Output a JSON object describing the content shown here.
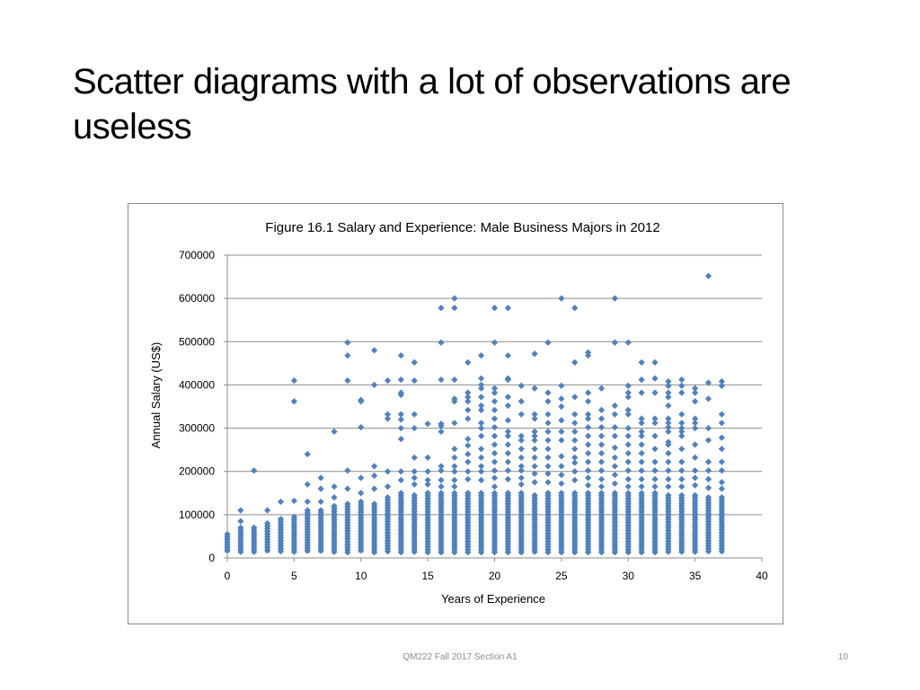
{
  "slide": {
    "title": "Scatter diagrams with a lot of observations are useless",
    "footer": "QM222 Fall 2017 Section A1",
    "page_number": "10"
  },
  "chart_data": {
    "type": "scatter",
    "title": "Figure 16.1 Salary and Experience: Male Business Majors in 2012",
    "xlabel": "Years of Experience",
    "ylabel": "Annual Salary (US$)",
    "xlim": [
      0,
      40
    ],
    "ylim": [
      0,
      700000
    ],
    "x_ticks": [
      0,
      5,
      10,
      15,
      20,
      25,
      30,
      35,
      40
    ],
    "y_ticks": [
      0,
      100000,
      200000,
      300000,
      400000,
      500000,
      600000,
      700000
    ],
    "y_tick_labels": [
      "0",
      "100000",
      "200000",
      "300000",
      "400000",
      "500000",
      "600000",
      "700000"
    ],
    "grid": "horizontal",
    "legend": "none",
    "marker": "diamond",
    "color": "#4f81bd",
    "dense_band_top": [
      [
        0,
        55000
      ],
      [
        1,
        70000
      ],
      [
        2,
        70000
      ],
      [
        3,
        80000
      ],
      [
        4,
        90000
      ],
      [
        5,
        95000
      ],
      [
        6,
        110000
      ],
      [
        7,
        110000
      ],
      [
        8,
        120000
      ],
      [
        9,
        125000
      ],
      [
        10,
        130000
      ],
      [
        11,
        125000
      ],
      [
        12,
        140000
      ],
      [
        13,
        150000
      ],
      [
        14,
        145000
      ],
      [
        15,
        150000
      ],
      [
        16,
        150000
      ],
      [
        17,
        150000
      ],
      [
        18,
        150000
      ],
      [
        19,
        150000
      ],
      [
        20,
        150000
      ],
      [
        21,
        150000
      ],
      [
        22,
        150000
      ],
      [
        23,
        145000
      ],
      [
        24,
        150000
      ],
      [
        25,
        150000
      ],
      [
        26,
        150000
      ],
      [
        27,
        150000
      ],
      [
        28,
        150000
      ],
      [
        29,
        150000
      ],
      [
        30,
        150000
      ],
      [
        31,
        150000
      ],
      [
        32,
        150000
      ],
      [
        33,
        145000
      ],
      [
        34,
        145000
      ],
      [
        35,
        145000
      ],
      [
        36,
        140000
      ],
      [
        37,
        140000
      ]
    ],
    "points": [
      [
        1,
        110000
      ],
      [
        1,
        85000
      ],
      [
        2,
        202000
      ],
      [
        3,
        110000
      ],
      [
        4,
        130000
      ],
      [
        5,
        410000
      ],
      [
        5,
        362000
      ],
      [
        5,
        132000
      ],
      [
        6,
        240000
      ],
      [
        6,
        170000
      ],
      [
        6,
        130000
      ],
      [
        7,
        185000
      ],
      [
        7,
        160000
      ],
      [
        7,
        130000
      ],
      [
        8,
        292000
      ],
      [
        8,
        165000
      ],
      [
        8,
        140000
      ],
      [
        9,
        498000
      ],
      [
        9,
        468000
      ],
      [
        9,
        410000
      ],
      [
        9,
        202000
      ],
      [
        9,
        160000
      ],
      [
        10,
        365000
      ],
      [
        10,
        362000
      ],
      [
        10,
        302000
      ],
      [
        10,
        185000
      ],
      [
        10,
        150000
      ],
      [
        11,
        480000
      ],
      [
        11,
        400000
      ],
      [
        11,
        212000
      ],
      [
        11,
        190000
      ],
      [
        11,
        160000
      ],
      [
        12,
        410000
      ],
      [
        12,
        332000
      ],
      [
        12,
        322000
      ],
      [
        12,
        200000
      ],
      [
        12,
        165000
      ],
      [
        13,
        468000
      ],
      [
        13,
        412000
      ],
      [
        13,
        382000
      ],
      [
        13,
        377000
      ],
      [
        13,
        332000
      ],
      [
        13,
        320000
      ],
      [
        13,
        300000
      ],
      [
        13,
        275000
      ],
      [
        13,
        200000
      ],
      [
        13,
        180000
      ],
      [
        14,
        452000
      ],
      [
        14,
        410000
      ],
      [
        14,
        332000
      ],
      [
        14,
        300000
      ],
      [
        14,
        232000
      ],
      [
        14,
        200000
      ],
      [
        14,
        185000
      ],
      [
        14,
        170000
      ],
      [
        15,
        310000
      ],
      [
        15,
        232000
      ],
      [
        15,
        200000
      ],
      [
        15,
        180000
      ],
      [
        15,
        170000
      ],
      [
        16,
        578000
      ],
      [
        16,
        498000
      ],
      [
        16,
        412000
      ],
      [
        16,
        310000
      ],
      [
        16,
        305000
      ],
      [
        16,
        292000
      ],
      [
        16,
        212000
      ],
      [
        16,
        202000
      ],
      [
        16,
        180000
      ],
      [
        16,
        165000
      ],
      [
        17,
        600000
      ],
      [
        17,
        578000
      ],
      [
        17,
        412000
      ],
      [
        17,
        368000
      ],
      [
        17,
        362000
      ],
      [
        17,
        312000
      ],
      [
        17,
        252000
      ],
      [
        17,
        232000
      ],
      [
        17,
        212000
      ],
      [
        17,
        200000
      ],
      [
        17,
        180000
      ],
      [
        17,
        165000
      ],
      [
        18,
        452000
      ],
      [
        18,
        382000
      ],
      [
        18,
        372000
      ],
      [
        18,
        362000
      ],
      [
        18,
        342000
      ],
      [
        18,
        322000
      ],
      [
        18,
        275000
      ],
      [
        18,
        260000
      ],
      [
        18,
        240000
      ],
      [
        18,
        222000
      ],
      [
        18,
        200000
      ],
      [
        18,
        182000
      ],
      [
        19,
        468000
      ],
      [
        19,
        415000
      ],
      [
        19,
        400000
      ],
      [
        19,
        392000
      ],
      [
        19,
        372000
      ],
      [
        19,
        352000
      ],
      [
        19,
        342000
      ],
      [
        19,
        312000
      ],
      [
        19,
        300000
      ],
      [
        19,
        282000
      ],
      [
        19,
        252000
      ],
      [
        19,
        232000
      ],
      [
        19,
        212000
      ],
      [
        19,
        200000
      ],
      [
        19,
        180000
      ],
      [
        20,
        578000
      ],
      [
        20,
        498000
      ],
      [
        20,
        392000
      ],
      [
        20,
        382000
      ],
      [
        20,
        362000
      ],
      [
        20,
        342000
      ],
      [
        20,
        322000
      ],
      [
        20,
        302000
      ],
      [
        20,
        282000
      ],
      [
        20,
        262000
      ],
      [
        20,
        242000
      ],
      [
        20,
        222000
      ],
      [
        20,
        202000
      ],
      [
        20,
        185000
      ],
      [
        20,
        165000
      ],
      [
        21,
        578000
      ],
      [
        21,
        468000
      ],
      [
        21,
        415000
      ],
      [
        21,
        412000
      ],
      [
        21,
        372000
      ],
      [
        21,
        352000
      ],
      [
        21,
        318000
      ],
      [
        21,
        292000
      ],
      [
        21,
        282000
      ],
      [
        21,
        262000
      ],
      [
        21,
        242000
      ],
      [
        21,
        222000
      ],
      [
        21,
        202000
      ],
      [
        21,
        182000
      ],
      [
        22,
        398000
      ],
      [
        22,
        362000
      ],
      [
        22,
        332000
      ],
      [
        22,
        282000
      ],
      [
        22,
        272000
      ],
      [
        22,
        252000
      ],
      [
        22,
        232000
      ],
      [
        22,
        212000
      ],
      [
        22,
        202000
      ],
      [
        22,
        185000
      ],
      [
        22,
        170000
      ],
      [
        23,
        472000
      ],
      [
        23,
        392000
      ],
      [
        23,
        332000
      ],
      [
        23,
        322000
      ],
      [
        23,
        292000
      ],
      [
        23,
        282000
      ],
      [
        23,
        272000
      ],
      [
        23,
        252000
      ],
      [
        23,
        232000
      ],
      [
        23,
        212000
      ],
      [
        23,
        195000
      ],
      [
        23,
        175000
      ],
      [
        24,
        498000
      ],
      [
        24,
        382000
      ],
      [
        24,
        362000
      ],
      [
        24,
        332000
      ],
      [
        24,
        312000
      ],
      [
        24,
        292000
      ],
      [
        24,
        272000
      ],
      [
        24,
        252000
      ],
      [
        24,
        232000
      ],
      [
        24,
        212000
      ],
      [
        24,
        195000
      ],
      [
        24,
        175000
      ],
      [
        25,
        600000
      ],
      [
        25,
        398000
      ],
      [
        25,
        368000
      ],
      [
        25,
        350000
      ],
      [
        25,
        318000
      ],
      [
        25,
        292000
      ],
      [
        25,
        272000
      ],
      [
        25,
        235000
      ],
      [
        25,
        212000
      ],
      [
        25,
        192000
      ],
      [
        25,
        172000
      ],
      [
        26,
        578000
      ],
      [
        26,
        452000
      ],
      [
        26,
        372000
      ],
      [
        26,
        332000
      ],
      [
        26,
        312000
      ],
      [
        26,
        292000
      ],
      [
        26,
        272000
      ],
      [
        26,
        252000
      ],
      [
        26,
        232000
      ],
      [
        26,
        220000
      ],
      [
        26,
        200000
      ],
      [
        26,
        180000
      ],
      [
        27,
        475000
      ],
      [
        27,
        468000
      ],
      [
        27,
        382000
      ],
      [
        27,
        362000
      ],
      [
        27,
        332000
      ],
      [
        27,
        322000
      ],
      [
        27,
        302000
      ],
      [
        27,
        282000
      ],
      [
        27,
        262000
      ],
      [
        27,
        242000
      ],
      [
        27,
        222000
      ],
      [
        27,
        202000
      ],
      [
        27,
        185000
      ],
      [
        27,
        168000
      ],
      [
        28,
        392000
      ],
      [
        28,
        342000
      ],
      [
        28,
        322000
      ],
      [
        28,
        302000
      ],
      [
        28,
        282000
      ],
      [
        28,
        262000
      ],
      [
        28,
        242000
      ],
      [
        28,
        222000
      ],
      [
        28,
        202000
      ],
      [
        28,
        182000
      ],
      [
        28,
        165000
      ],
      [
        29,
        600000
      ],
      [
        29,
        498000
      ],
      [
        29,
        352000
      ],
      [
        29,
        332000
      ],
      [
        29,
        302000
      ],
      [
        29,
        282000
      ],
      [
        29,
        255000
      ],
      [
        29,
        232000
      ],
      [
        29,
        212000
      ],
      [
        29,
        192000
      ],
      [
        29,
        172000
      ],
      [
        30,
        498000
      ],
      [
        30,
        398000
      ],
      [
        30,
        382000
      ],
      [
        30,
        372000
      ],
      [
        30,
        342000
      ],
      [
        30,
        332000
      ],
      [
        30,
        300000
      ],
      [
        30,
        282000
      ],
      [
        30,
        262000
      ],
      [
        30,
        242000
      ],
      [
        30,
        222000
      ],
      [
        30,
        202000
      ],
      [
        30,
        182000
      ],
      [
        30,
        165000
      ],
      [
        31,
        452000
      ],
      [
        31,
        412000
      ],
      [
        31,
        382000
      ],
      [
        31,
        322000
      ],
      [
        31,
        312000
      ],
      [
        31,
        292000
      ],
      [
        31,
        282000
      ],
      [
        31,
        262000
      ],
      [
        31,
        242000
      ],
      [
        31,
        222000
      ],
      [
        31,
        202000
      ],
      [
        31,
        182000
      ],
      [
        31,
        165000
      ],
      [
        32,
        452000
      ],
      [
        32,
        415000
      ],
      [
        32,
        382000
      ],
      [
        32,
        322000
      ],
      [
        32,
        312000
      ],
      [
        32,
        282000
      ],
      [
        32,
        252000
      ],
      [
        32,
        222000
      ],
      [
        32,
        202000
      ],
      [
        32,
        182000
      ],
      [
        32,
        165000
      ],
      [
        33,
        408000
      ],
      [
        33,
        398000
      ],
      [
        33,
        382000
      ],
      [
        33,
        372000
      ],
      [
        33,
        352000
      ],
      [
        33,
        322000
      ],
      [
        33,
        312000
      ],
      [
        33,
        302000
      ],
      [
        33,
        292000
      ],
      [
        33,
        268000
      ],
      [
        33,
        262000
      ],
      [
        33,
        242000
      ],
      [
        33,
        222000
      ],
      [
        33,
        202000
      ],
      [
        33,
        182000
      ],
      [
        33,
        165000
      ],
      [
        34,
        412000
      ],
      [
        34,
        398000
      ],
      [
        34,
        382000
      ],
      [
        34,
        332000
      ],
      [
        34,
        312000
      ],
      [
        34,
        300000
      ],
      [
        34,
        292000
      ],
      [
        34,
        282000
      ],
      [
        34,
        252000
      ],
      [
        34,
        222000
      ],
      [
        34,
        202000
      ],
      [
        34,
        182000
      ],
      [
        34,
        165000
      ],
      [
        35,
        392000
      ],
      [
        35,
        382000
      ],
      [
        35,
        362000
      ],
      [
        35,
        322000
      ],
      [
        35,
        312000
      ],
      [
        35,
        300000
      ],
      [
        35,
        262000
      ],
      [
        35,
        232000
      ],
      [
        35,
        202000
      ],
      [
        35,
        185000
      ],
      [
        35,
        168000
      ],
      [
        36,
        652000
      ],
      [
        36,
        405000
      ],
      [
        36,
        368000
      ],
      [
        36,
        300000
      ],
      [
        36,
        272000
      ],
      [
        36,
        222000
      ],
      [
        36,
        202000
      ],
      [
        36,
        182000
      ],
      [
        36,
        162000
      ],
      [
        37,
        408000
      ],
      [
        37,
        398000
      ],
      [
        37,
        332000
      ],
      [
        37,
        312000
      ],
      [
        37,
        278000
      ],
      [
        37,
        252000
      ],
      [
        37,
        222000
      ],
      [
        37,
        202000
      ],
      [
        37,
        175000
      ],
      [
        37,
        160000
      ]
    ]
  }
}
